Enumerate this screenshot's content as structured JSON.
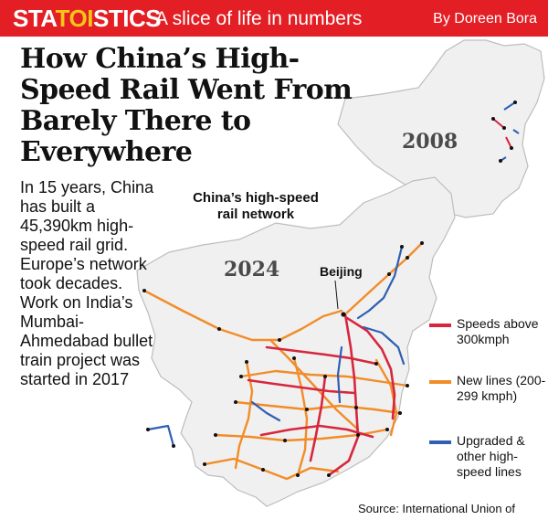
{
  "banner": {
    "brand_pre": "STA",
    "brand_toi": "TOI",
    "brand_post": "STICS",
    "tagline": "A slice of life in numbers",
    "byline": "By Doreen Bora",
    "color": "#e31e24"
  },
  "headline": "How China’s High-Speed Rail Went From Barely There to Everywhere",
  "blurb": "In 15 years, China has built a 45,390km high-speed rail grid. Europe’s network took decades. Work on India’s Mumbai-Ahmedabad bullet train project was started in 2017",
  "map": {
    "title": "China’s high-speed rail network",
    "year_current": "2024",
    "year_inset": "2008",
    "city_label": "Beijing"
  },
  "legend": [
    {
      "label": "Speeds above 300kmph",
      "color": "#d7263d"
    },
    {
      "label": "New lines (200-299 kmph)",
      "color": "#f28c28"
    },
    {
      "label": "Upgraded & other high-speed lines",
      "color": "#2f5fb3"
    }
  ],
  "source": "Source: International Union of",
  "colors": {
    "land": "#f0f0f0",
    "border": "#bdbdbd"
  }
}
